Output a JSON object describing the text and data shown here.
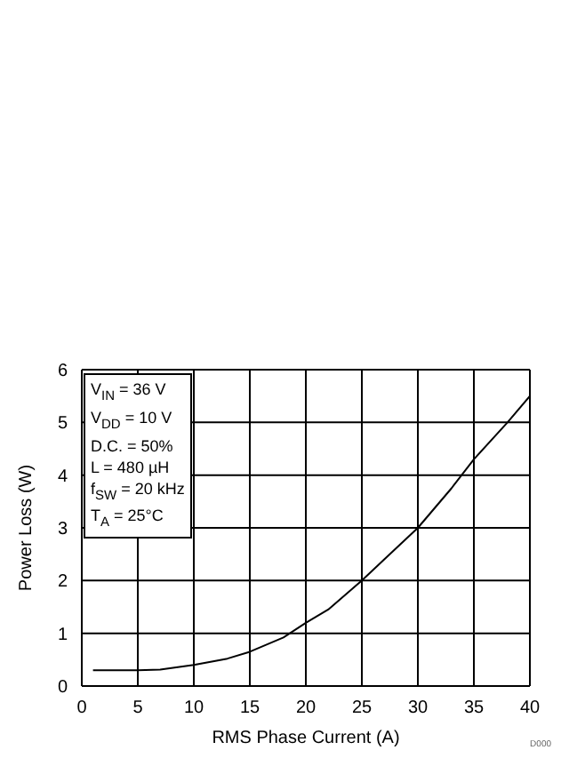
{
  "chart_data": {
    "type": "line",
    "xlabel": "RMS Phase Current (A)",
    "ylabel": "Power Loss (W)",
    "x": [
      1,
      3,
      5,
      7,
      10,
      13,
      15,
      18,
      20,
      22,
      25,
      27,
      30,
      33,
      35,
      38,
      40
    ],
    "series": [
      {
        "color": "#000000",
        "values": [
          0.3,
          0.3,
          0.3,
          0.31,
          0.4,
          0.52,
          0.65,
          0.92,
          1.2,
          1.45,
          2.0,
          2.4,
          3.0,
          3.75,
          4.3,
          5.0,
          5.5
        ]
      }
    ],
    "xlim": [
      0,
      40
    ],
    "xticks": [
      0,
      5,
      10,
      15,
      20,
      25,
      30,
      35,
      40
    ],
    "ylim": [
      0,
      6
    ],
    "yticks": [
      0,
      1,
      2,
      3,
      4,
      5,
      6
    ],
    "grid": true,
    "marker": "none",
    "line_style": "solid",
    "annotations": [
      "V$_{IN}$ = 36 V",
      "V$_{DD}$ = 10 V",
      "D.C. = 50%",
      "L = 480 µH",
      "f$_{SW}$ = 20 kHz",
      "T$_{A}$ = 25°C",
      "D000"
    ]
  }
}
